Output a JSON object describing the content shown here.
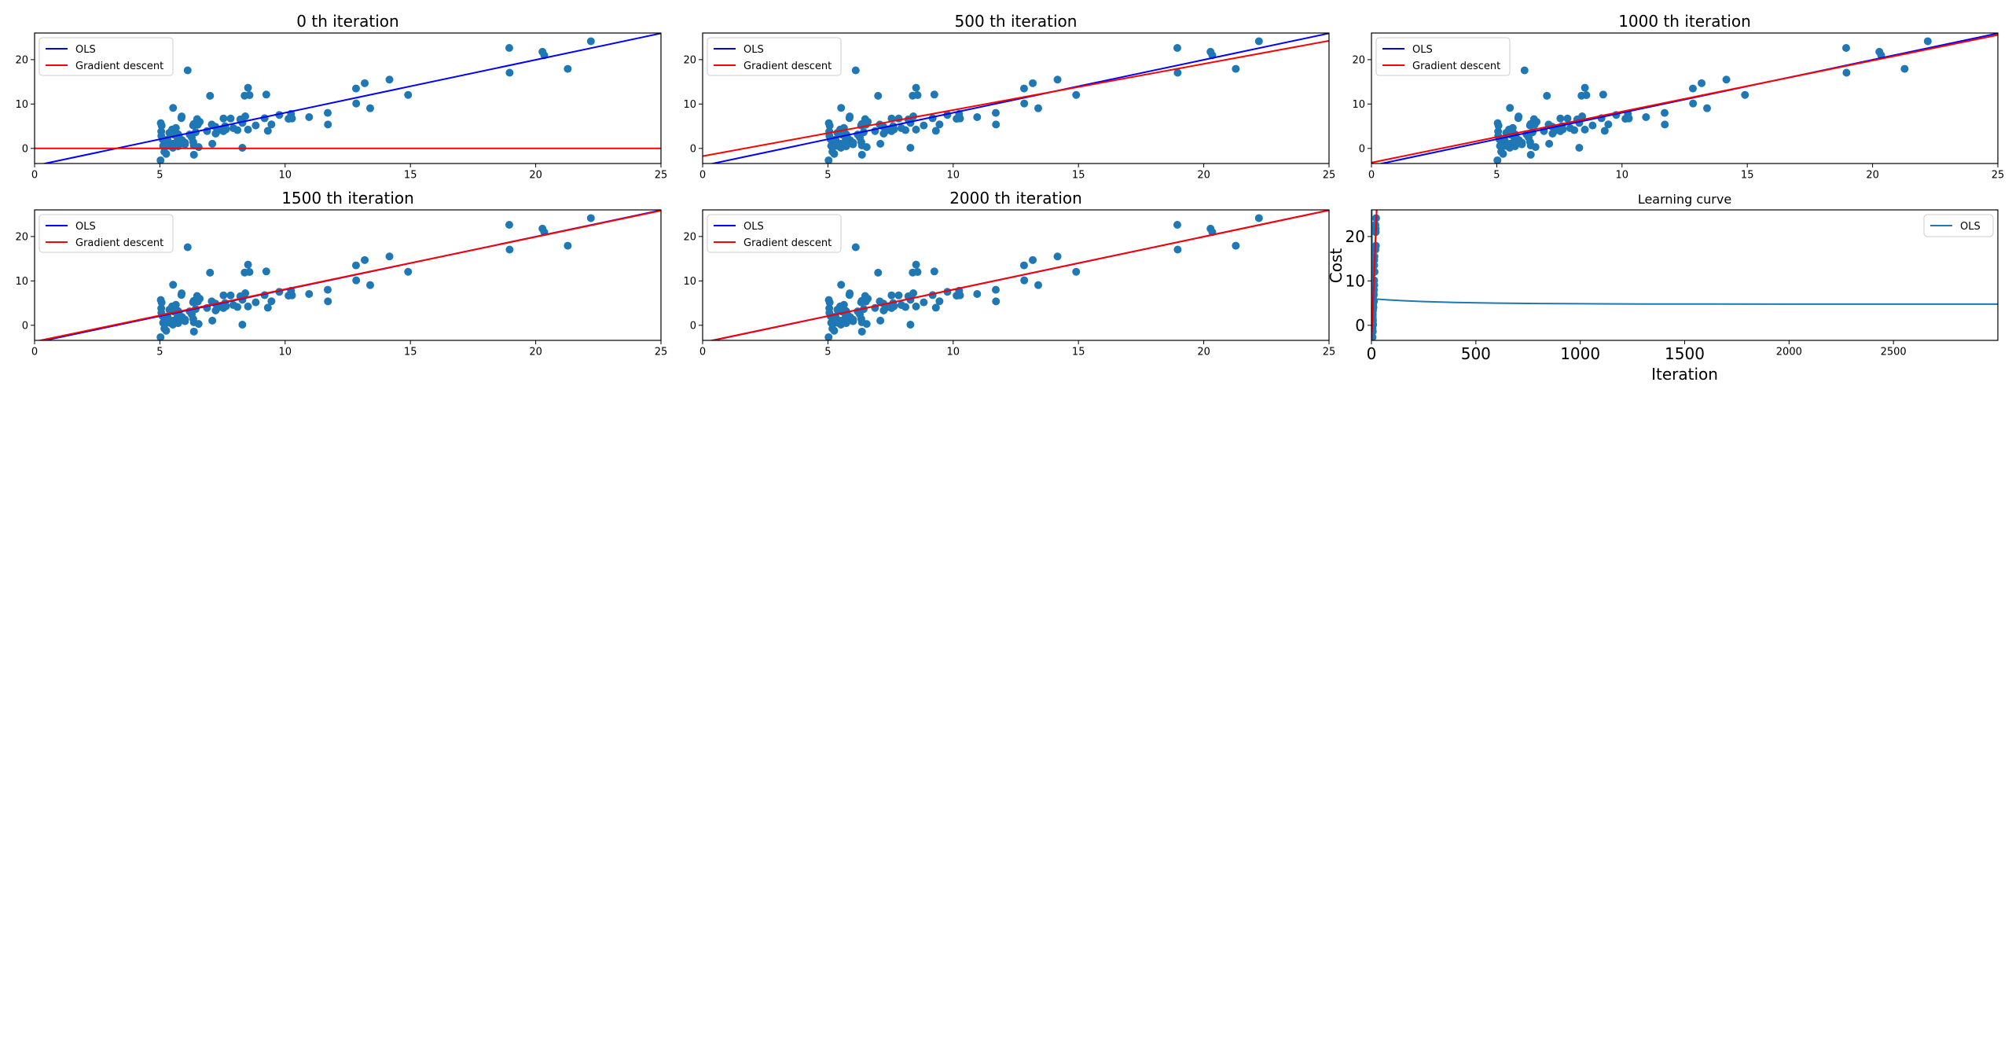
{
  "colors": {
    "scatter": "#1f77b4",
    "ols": "#0000ff",
    "gradient_descent": "#ff0000",
    "learning_curve": "#1f77b4"
  },
  "scatter_points": {
    "x": [
      6.1101,
      5.5277,
      8.5186,
      7.0032,
      5.8598,
      8.3829,
      7.4764,
      8.5781,
      6.4862,
      5.0546,
      5.7107,
      14.164,
      5.734,
      8.4084,
      5.6407,
      5.3794,
      6.3654,
      5.1301,
      6.4296,
      7.0708,
      6.1891,
      20.27,
      5.4901,
      6.3261,
      5.5649,
      18.945,
      12.828,
      10.957,
      13.176,
      22.203,
      5.2524,
      6.5894,
      9.2482,
      5.8918,
      8.2111,
      7.9334,
      8.0959,
      5.6063,
      12.836,
      6.3534,
      5.4069,
      6.8825,
      11.708,
      5.7737,
      7.8247,
      7.0931,
      5.0702,
      5.8014,
      11.7,
      5.5416,
      7.5402,
      5.3077,
      7.4239,
      7.6031,
      6.3328,
      6.3589,
      6.2742,
      5.6397,
      9.3102,
      9.4536,
      8.8254,
      5.1793,
      21.279,
      14.908,
      18.959,
      7.2182,
      8.2951,
      10.236,
      5.4994,
      20.341,
      10.136,
      7.3345,
      6.0062,
      7.2259,
      5.0269,
      6.5479,
      7.5386,
      5.0365,
      10.274,
      5.1077,
      5.7292,
      5.1884,
      6.3557,
      9.7687,
      6.5159,
      8.5172,
      9.1802,
      6.002,
      5.5204,
      5.0594,
      5.7077,
      7.6366,
      5.8707,
      5.3054,
      8.2934,
      13.394,
      5.4369
    ],
    "y": [
      17.592,
      9.1302,
      13.662,
      11.854,
      6.8233,
      11.886,
      4.3483,
      12,
      6.5987,
      3.8166,
      3.2522,
      15.505,
      3.1551,
      7.2258,
      0.71618,
      3.5129,
      5.3048,
      0.56077,
      3.6518,
      5.3893,
      3.1386,
      21.767,
      4.263,
      5.1875,
      3.0825,
      22.638,
      13.501,
      7.0467,
      14.692,
      24.147,
      -1.22,
      5.9966,
      12.134,
      1.8495,
      6.5426,
      4.5623,
      4.1164,
      3.3928,
      10.117,
      5.4974,
      0.55657,
      3.9115,
      5.3854,
      2.4406,
      6.7318,
      1.0463,
      5.1337,
      1.844,
      8.0043,
      1.0179,
      6.7504,
      1.8396,
      4.2885,
      4.9981,
      1.4233,
      -1.4211,
      2.4756,
      4.6042,
      3.9624,
      5.4141,
      5.1694,
      -0.74279,
      17.929,
      12.054,
      17.054,
      4.8852,
      5.7442,
      7.7754,
      1.0173,
      20.992,
      6.6799,
      4.0259,
      1.2784,
      3.3411,
      -2.6807,
      0.29678,
      3.8845,
      5.7014,
      6.7526,
      2.0576,
      0.47953,
      0.20421,
      0.67861,
      7.5435,
      5.3436,
      4.2415,
      6.7981,
      0.92695,
      0.152,
      2.8214,
      1.8451,
      4.2959,
      7.2029,
      1.9869,
      0.14454,
      9.0551,
      0.61705
    ]
  },
  "chart_data": [
    {
      "type": "scatter",
      "title": "0 th iteration",
      "xlabel": "",
      "ylabel": "",
      "xlim": [
        0,
        25
      ],
      "ylim": [
        -3.4,
        26
      ],
      "xticks": [
        "0",
        "5",
        "10",
        "15",
        "20",
        "25"
      ],
      "yticks": [
        "0",
        "10",
        "20"
      ],
      "grid": false,
      "legend": [
        "OLS",
        "Gradient descent"
      ],
      "legend_placement": "top-left",
      "lines": [
        {
          "name": "OLS",
          "intercept": -3.8958,
          "slope": 1.193
        },
        {
          "name": "Gradient descent",
          "intercept": 0,
          "slope": 0
        }
      ]
    },
    {
      "type": "scatter",
      "title": "500 th iteration",
      "xlabel": "",
      "ylabel": "",
      "xlim": [
        0,
        25
      ],
      "ylim": [
        -3.4,
        26
      ],
      "xticks": [
        "0",
        "5",
        "10",
        "15",
        "20",
        "25"
      ],
      "yticks": [
        "0",
        "10",
        "20"
      ],
      "grid": false,
      "legend": [
        "OLS",
        "Gradient descent"
      ],
      "legend_placement": "top-left",
      "lines": [
        {
          "name": "OLS",
          "intercept": -3.8958,
          "slope": 1.193
        },
        {
          "name": "Gradient descent",
          "intercept": -1.75,
          "slope": 1.04
        }
      ]
    },
    {
      "type": "scatter",
      "title": "1000 th iteration",
      "xlabel": "",
      "ylabel": "",
      "xlim": [
        0,
        25
      ],
      "ylim": [
        -3.4,
        26
      ],
      "xticks": [
        "0",
        "5",
        "10",
        "15",
        "20",
        "25"
      ],
      "yticks": [
        "0",
        "10",
        "20"
      ],
      "grid": false,
      "legend": [
        "OLS",
        "Gradient descent"
      ],
      "legend_placement": "top-left",
      "lines": [
        {
          "name": "OLS",
          "intercept": -3.8958,
          "slope": 1.193
        },
        {
          "name": "Gradient descent",
          "intercept": -3.2,
          "slope": 1.15
        }
      ]
    },
    {
      "type": "scatter",
      "title": "1500 th iteration",
      "xlabel": "",
      "ylabel": "",
      "xlim": [
        0,
        25
      ],
      "ylim": [
        -3.4,
        26
      ],
      "xticks": [
        "0",
        "5",
        "10",
        "15",
        "20",
        "25"
      ],
      "yticks": [
        "0",
        "10",
        "20"
      ],
      "grid": false,
      "legend": [
        "OLS",
        "Gradient descent"
      ],
      "legend_placement": "top-left",
      "lines": [
        {
          "name": "OLS",
          "intercept": -3.8958,
          "slope": 1.193
        },
        {
          "name": "Gradient descent",
          "intercept": -3.68,
          "slope": 1.18
        }
      ]
    },
    {
      "type": "scatter",
      "title": "2000 th iteration",
      "xlabel": "",
      "ylabel": "",
      "xlim": [
        0,
        25
      ],
      "ylim": [
        -3.4,
        26
      ],
      "xticks": [
        "0",
        "5",
        "10",
        "15",
        "20",
        "25"
      ],
      "yticks": [
        "0",
        "10",
        "20"
      ],
      "grid": false,
      "legend": [
        "OLS",
        "Gradient descent"
      ],
      "legend_placement": "top-left",
      "lines": [
        {
          "name": "OLS",
          "intercept": -3.8958,
          "slope": 1.193
        },
        {
          "name": "Gradient descent",
          "intercept": -3.86,
          "slope": 1.191
        }
      ]
    },
    {
      "type": "line",
      "title": "Learning curve",
      "xlabel": "Iteration",
      "ylabel": "Cost",
      "xlim": [
        0,
        3000
      ],
      "ylim": [
        -3.4,
        26
      ],
      "xticks": [
        "0",
        "500",
        "1000",
        "1500",
        "2000",
        "2500"
      ],
      "yticks": [
        "0",
        "10",
        "20"
      ],
      "grid": false,
      "legend": [
        "OLS"
      ],
      "legend_placement": "top-right",
      "series": [
        {
          "name": "OLS",
          "x": [
            0,
            4,
            10,
            20,
            40,
            80,
            150,
            250,
            400,
            600,
            800,
            1000,
            1300,
            1600,
            2000,
            2500,
            3000
          ],
          "y": [
            32.07,
            12.0,
            6.5,
            5.9,
            5.85,
            5.72,
            5.55,
            5.35,
            5.15,
            4.99,
            4.9,
            4.85,
            4.8,
            4.78,
            4.77,
            4.76,
            4.76
          ]
        }
      ],
      "overlay_scatter": true
    }
  ]
}
